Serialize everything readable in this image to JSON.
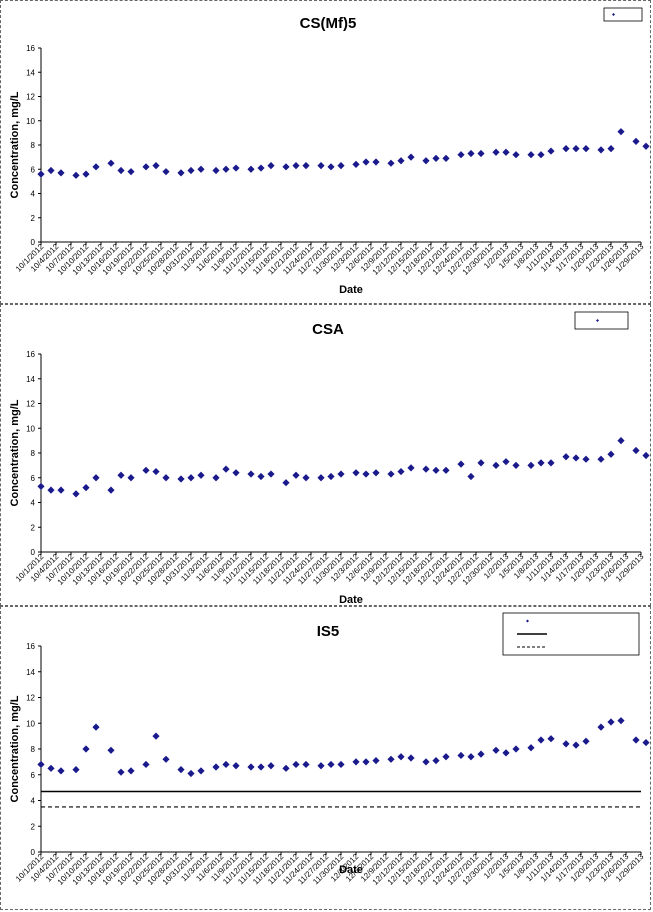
{
  "chart_data": [
    {
      "type": "scatter",
      "title": "CS(Mf)5",
      "xlabel": "Date",
      "ylabel": "Concentration, mg/L",
      "ylim": [
        0,
        16
      ],
      "yticks": [
        0,
        2,
        4,
        6,
        8,
        10,
        12,
        14,
        16
      ],
      "xlim": [
        "10/1/2012",
        "1/29/2013"
      ],
      "x_tick_labels": [
        "10/1/2012",
        "10/4/2012",
        "10/7/2012",
        "10/10/2012",
        "10/13/2012",
        "10/16/2012",
        "10/19/2012",
        "10/22/2012",
        "10/25/2012",
        "10/28/2012",
        "10/31/2012",
        "11/3/2012",
        "11/6/2012",
        "11/9/2012",
        "11/12/2012",
        "11/15/2012",
        "11/18/2012",
        "11/21/2012",
        "11/24/2012",
        "11/27/2012",
        "11/30/2012",
        "12/3/2012",
        "12/6/2012",
        "12/9/2012",
        "12/12/2012",
        "12/15/2012",
        "12/18/2012",
        "12/21/2012",
        "12/24/2012",
        "12/27/2012",
        "12/30/2012",
        "1/2/2013",
        "1/5/2013",
        "1/8/2013",
        "1/11/2013",
        "1/14/2013",
        "1/17/2013",
        "1/20/2013",
        "1/23/2013",
        "1/26/2013",
        "1/29/2013"
      ],
      "legend": {
        "placement": "top-right",
        "entries": []
      },
      "series": [
        {
          "marker": "diamond",
          "color": "#1a1a8c",
          "points": [
            [
              "10/1/2012",
              5.6
            ],
            [
              "10/3/2012",
              5.9
            ],
            [
              "10/5/2012",
              5.7
            ],
            [
              "10/8/2012",
              5.5
            ],
            [
              "10/10/2012",
              5.6
            ],
            [
              "10/12/2012",
              6.2
            ],
            [
              "10/15/2012",
              6.5
            ],
            [
              "10/17/2012",
              5.9
            ],
            [
              "10/19/2012",
              5.8
            ],
            [
              "10/22/2012",
              6.2
            ],
            [
              "10/24/2012",
              6.3
            ],
            [
              "10/26/2012",
              5.8
            ],
            [
              "10/29/2012",
              5.7
            ],
            [
              "10/31/2012",
              5.9
            ],
            [
              "11/2/2012",
              6.0
            ],
            [
              "11/5/2012",
              5.9
            ],
            [
              "11/7/2012",
              6.0
            ],
            [
              "11/9/2012",
              6.1
            ],
            [
              "11/12/2012",
              6.0
            ],
            [
              "11/14/2012",
              6.1
            ],
            [
              "11/16/2012",
              6.3
            ],
            [
              "11/19/2012",
              6.2
            ],
            [
              "11/21/2012",
              6.3
            ],
            [
              "11/23/2012",
              6.3
            ],
            [
              "11/26/2012",
              6.3
            ],
            [
              "11/28/2012",
              6.2
            ],
            [
              "11/30/2012",
              6.3
            ],
            [
              "12/3/2012",
              6.4
            ],
            [
              "12/5/2012",
              6.6
            ],
            [
              "12/7/2012",
              6.6
            ],
            [
              "12/10/2012",
              6.5
            ],
            [
              "12/12/2012",
              6.7
            ],
            [
              "12/14/2012",
              7.0
            ],
            [
              "12/17/2012",
              6.7
            ],
            [
              "12/19/2012",
              6.9
            ],
            [
              "12/21/2012",
              6.9
            ],
            [
              "12/24/2012",
              7.2
            ],
            [
              "12/26/2012",
              7.3
            ],
            [
              "12/28/2012",
              7.3
            ],
            [
              "12/31/2012",
              7.4
            ],
            [
              "1/2/2013",
              7.4
            ],
            [
              "1/4/2013",
              7.2
            ],
            [
              "1/7/2013",
              7.2
            ],
            [
              "1/9/2013",
              7.2
            ],
            [
              "1/11/2013",
              7.5
            ],
            [
              "1/14/2013",
              7.7
            ],
            [
              "1/16/2013",
              7.7
            ],
            [
              "1/18/2013",
              7.7
            ],
            [
              "1/21/2013",
              7.6
            ],
            [
              "1/23/2013",
              7.7
            ],
            [
              "1/25/2013",
              9.1
            ],
            [
              "1/28/2013",
              8.3
            ],
            [
              "1/30/2013",
              7.9
            ]
          ]
        }
      ]
    },
    {
      "type": "scatter",
      "title": "CSA",
      "xlabel": "Date",
      "ylabel": "Concentration, mg/L",
      "ylim": [
        0,
        16
      ],
      "yticks": [
        0,
        2,
        4,
        6,
        8,
        10,
        12,
        14,
        16
      ],
      "xlim": [
        "10/1/2012",
        "1/29/2013"
      ],
      "x_tick_labels": [
        "10/1/2012",
        "10/4/2012",
        "10/7/2012",
        "10/10/2012",
        "10/13/2012",
        "10/16/2012",
        "10/19/2012",
        "10/22/2012",
        "10/25/2012",
        "10/28/2012",
        "10/31/2012",
        "11/3/2012",
        "11/6/2012",
        "11/9/2012",
        "11/12/2012",
        "11/15/2012",
        "11/18/2012",
        "11/21/2012",
        "11/24/2012",
        "11/27/2012",
        "11/30/2012",
        "12/3/2012",
        "12/6/2012",
        "12/9/2012",
        "12/12/2012",
        "12/15/2012",
        "12/18/2012",
        "12/21/2012",
        "12/24/2012",
        "12/27/2012",
        "12/30/2012",
        "1/2/2013",
        "1/5/2013",
        "1/8/2013",
        "1/11/2013",
        "1/14/2013",
        "1/17/2013",
        "1/20/2013",
        "1/23/2013",
        "1/26/2013",
        "1/29/2013"
      ],
      "legend": {
        "placement": "top-right",
        "entries": []
      },
      "series": [
        {
          "marker": "diamond",
          "color": "#1a1a8c",
          "points": [
            [
              "10/1/2012",
              5.3
            ],
            [
              "10/3/2012",
              5.0
            ],
            [
              "10/5/2012",
              5.0
            ],
            [
              "10/8/2012",
              4.7
            ],
            [
              "10/10/2012",
              5.2
            ],
            [
              "10/12/2012",
              6.0
            ],
            [
              "10/15/2012",
              5.0
            ],
            [
              "10/17/2012",
              6.2
            ],
            [
              "10/19/2012",
              6.0
            ],
            [
              "10/22/2012",
              6.6
            ],
            [
              "10/24/2012",
              6.5
            ],
            [
              "10/26/2012",
              6.0
            ],
            [
              "10/29/2012",
              5.9
            ],
            [
              "10/31/2012",
              6.0
            ],
            [
              "11/2/2012",
              6.2
            ],
            [
              "11/5/2012",
              6.0
            ],
            [
              "11/7/2012",
              6.7
            ],
            [
              "11/9/2012",
              6.4
            ],
            [
              "11/12/2012",
              6.3
            ],
            [
              "11/14/2012",
              6.1
            ],
            [
              "11/16/2012",
              6.3
            ],
            [
              "11/19/2012",
              5.6
            ],
            [
              "11/21/2012",
              6.2
            ],
            [
              "11/23/2012",
              6.0
            ],
            [
              "11/26/2012",
              6.0
            ],
            [
              "11/28/2012",
              6.1
            ],
            [
              "11/30/2012",
              6.3
            ],
            [
              "12/3/2012",
              6.4
            ],
            [
              "12/5/2012",
              6.3
            ],
            [
              "12/7/2012",
              6.4
            ],
            [
              "12/10/2012",
              6.3
            ],
            [
              "12/12/2012",
              6.5
            ],
            [
              "12/14/2012",
              6.8
            ],
            [
              "12/17/2012",
              6.7
            ],
            [
              "12/19/2012",
              6.6
            ],
            [
              "12/21/2012",
              6.6
            ],
            [
              "12/24/2012",
              7.1
            ],
            [
              "12/26/2012",
              6.1
            ],
            [
              "12/28/2012",
              7.2
            ],
            [
              "12/31/2012",
              7.0
            ],
            [
              "1/2/2013",
              7.3
            ],
            [
              "1/4/2013",
              7.0
            ],
            [
              "1/7/2013",
              7.0
            ],
            [
              "1/9/2013",
              7.2
            ],
            [
              "1/11/2013",
              7.2
            ],
            [
              "1/14/2013",
              7.7
            ],
            [
              "1/16/2013",
              7.6
            ],
            [
              "1/18/2013",
              7.5
            ],
            [
              "1/21/2013",
              7.5
            ],
            [
              "1/23/2013",
              7.9
            ],
            [
              "1/25/2013",
              9.0
            ],
            [
              "1/28/2013",
              8.2
            ],
            [
              "1/30/2013",
              7.8
            ]
          ]
        }
      ]
    },
    {
      "type": "scatter",
      "title": "IS5",
      "xlabel": "Date",
      "ylabel": "Concentration, mg/L",
      "ylim": [
        0,
        16
      ],
      "yticks": [
        0,
        2,
        4,
        6,
        8,
        10,
        12,
        14,
        16
      ],
      "xlim": [
        "10/1/2012",
        "1/29/2013"
      ],
      "x_tick_labels": [
        "10/1/2012",
        "10/4/2012",
        "10/7/2012",
        "10/10/2012",
        "10/13/2012",
        "10/16/2012",
        "10/19/2012",
        "10/22/2012",
        "10/25/2012",
        "10/28/2012",
        "10/31/2012",
        "11/3/2012",
        "11/6/2012",
        "11/9/2012",
        "11/12/2012",
        "11/15/2012",
        "11/18/2012",
        "11/21/2012",
        "11/24/2012",
        "11/27/2012",
        "11/30/2012",
        "12/3/2012",
        "12/6/2012",
        "12/9/2012",
        "12/12/2012",
        "12/15/2012",
        "12/18/2012",
        "12/21/2012",
        "12/24/2012",
        "12/27/2012",
        "12/30/2012",
        "1/2/2013",
        "1/5/2013",
        "1/8/2013",
        "1/11/2013",
        "1/14/2013",
        "1/17/2013",
        "1/20/2013",
        "1/23/2013",
        "1/26/2013",
        "1/29/2013"
      ],
      "legend": {
        "placement": "top-right",
        "entries": []
      },
      "reference_lines": [
        {
          "y": 4.7,
          "style": "solid",
          "color": "#000000"
        },
        {
          "y": 3.5,
          "style": "dashed",
          "color": "#000000"
        }
      ],
      "series": [
        {
          "marker": "diamond",
          "color": "#1a1a8c",
          "points": [
            [
              "10/1/2012",
              6.8
            ],
            [
              "10/3/2012",
              6.5
            ],
            [
              "10/5/2012",
              6.3
            ],
            [
              "10/8/2012",
              6.4
            ],
            [
              "10/10/2012",
              8.0
            ],
            [
              "10/12/2012",
              9.7
            ],
            [
              "10/15/2012",
              7.9
            ],
            [
              "10/17/2012",
              6.2
            ],
            [
              "10/19/2012",
              6.3
            ],
            [
              "10/22/2012",
              6.8
            ],
            [
              "10/24/2012",
              9.0
            ],
            [
              "10/26/2012",
              7.2
            ],
            [
              "10/29/2012",
              6.4
            ],
            [
              "10/31/2012",
              6.1
            ],
            [
              "11/2/2012",
              6.3
            ],
            [
              "11/5/2012",
              6.6
            ],
            [
              "11/7/2012",
              6.8
            ],
            [
              "11/9/2012",
              6.7
            ],
            [
              "11/12/2012",
              6.6
            ],
            [
              "11/14/2012",
              6.6
            ],
            [
              "11/16/2012",
              6.7
            ],
            [
              "11/19/2012",
              6.5
            ],
            [
              "11/21/2012",
              6.8
            ],
            [
              "11/23/2012",
              6.8
            ],
            [
              "11/26/2012",
              6.7
            ],
            [
              "11/28/2012",
              6.8
            ],
            [
              "11/30/2012",
              6.8
            ],
            [
              "12/3/2012",
              7.0
            ],
            [
              "12/5/2012",
              7.0
            ],
            [
              "12/7/2012",
              7.1
            ],
            [
              "12/10/2012",
              7.2
            ],
            [
              "12/12/2012",
              7.4
            ],
            [
              "12/14/2012",
              7.3
            ],
            [
              "12/17/2012",
              7.0
            ],
            [
              "12/19/2012",
              7.1
            ],
            [
              "12/21/2012",
              7.4
            ],
            [
              "12/24/2012",
              7.5
            ],
            [
              "12/26/2012",
              7.4
            ],
            [
              "12/28/2012",
              7.6
            ],
            [
              "12/31/2012",
              7.9
            ],
            [
              "1/2/2013",
              7.7
            ],
            [
              "1/4/2013",
              8.0
            ],
            [
              "1/7/2013",
              8.1
            ],
            [
              "1/9/2013",
              8.7
            ],
            [
              "1/11/2013",
              8.8
            ],
            [
              "1/14/2013",
              8.4
            ],
            [
              "1/16/2013",
              8.3
            ],
            [
              "1/18/2013",
              8.6
            ],
            [
              "1/21/2013",
              9.7
            ],
            [
              "1/23/2013",
              10.1
            ],
            [
              "1/25/2013",
              10.2
            ],
            [
              "1/28/2013",
              8.7
            ],
            [
              "1/30/2013",
              8.5
            ]
          ]
        }
      ]
    }
  ]
}
